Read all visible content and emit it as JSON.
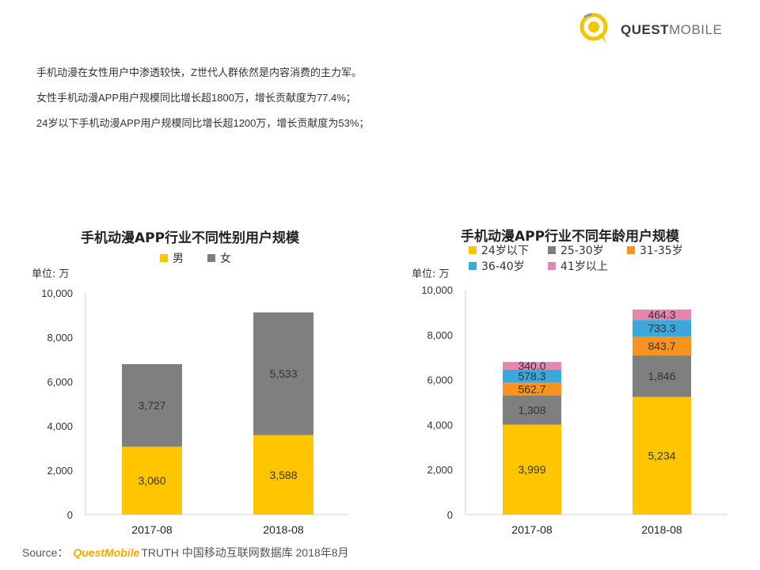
{
  "logo": {
    "text_bold": "QUEST",
    "text_light": "MOBILE",
    "color_ring": "#f5c400"
  },
  "intro": {
    "lines": [
      "手机动漫在女性用户中渗透较快，Z世代人群依然是内容消费的主力军。",
      "女性手机动漫APP用户规模同比增长超1800万，增长贡献度为77.4%；",
      "24岁以下手机动漫APP用户规模同比增长超1200万，增长贡献度为53%；"
    ]
  },
  "chart_data": [
    {
      "type": "bar",
      "stacked": true,
      "title": "手机动漫APP行业不同性别用户规模",
      "unit": "单位: 万",
      "categories": [
        "2017-08",
        "2018-08"
      ],
      "ylim": [
        0,
        10000
      ],
      "yticks": [
        "0",
        "2,000",
        "4,000",
        "6,000",
        "8,000",
        "10,000"
      ],
      "legend_position": "top",
      "series": [
        {
          "name": "男",
          "color": "#ffc600",
          "values": [
            3060,
            3588
          ],
          "labels": [
            "3,060",
            "3,588"
          ]
        },
        {
          "name": "女",
          "color": "#7f7f7f",
          "values": [
            3727,
            5533
          ],
          "labels": [
            "3,727",
            "5,533"
          ]
        }
      ]
    },
    {
      "type": "bar",
      "stacked": true,
      "title": "手机动漫APP行业不同年龄用户规模",
      "unit": "单位: 万",
      "categories": [
        "2017-08",
        "2018-08"
      ],
      "ylim": [
        0,
        10000
      ],
      "yticks": [
        "0",
        "2,000",
        "4,000",
        "6,000",
        "8,000",
        "10,000"
      ],
      "legend_position": "top",
      "series": [
        {
          "name": "24岁以下",
          "color": "#ffc600",
          "values": [
            3999,
            5234
          ],
          "labels": [
            "3,999",
            "5,234"
          ]
        },
        {
          "name": "25-30岁",
          "color": "#7f7f7f",
          "values": [
            1308,
            1846
          ],
          "labels": [
            "1,308",
            "1,846"
          ]
        },
        {
          "name": "31-35岁",
          "color": "#f7931e",
          "values": [
            562.7,
            843.7
          ],
          "labels": [
            "562.7",
            "843.7"
          ]
        },
        {
          "name": "36-40岁",
          "color": "#3aa8dc",
          "values": [
            578.3,
            733.3
          ],
          "labels": [
            "578.3",
            "733.3"
          ]
        },
        {
          "name": "41岁以上",
          "color": "#e586b0",
          "values": [
            340.0,
            464.3
          ],
          "labels": [
            "340.0",
            "464.3"
          ]
        }
      ]
    }
  ],
  "source": {
    "prefix": "Source：",
    "brand": "QuestMobile",
    "rest": "TRUTH 中国移动互联网数据库 2018年8月"
  }
}
